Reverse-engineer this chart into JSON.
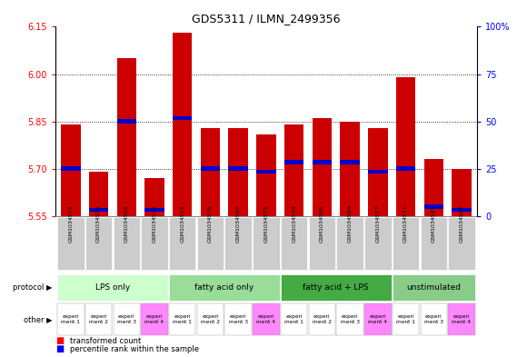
{
  "title": "GDS5311 / ILMN_2499356",
  "samples": [
    "GSM1034573",
    "GSM1034579",
    "GSM1034583",
    "GSM1034576",
    "GSM1034572",
    "GSM1034578",
    "GSM1034582",
    "GSM1034575",
    "GSM1034574",
    "GSM1034580",
    "GSM1034584",
    "GSM1034577",
    "GSM1034571",
    "GSM1034581",
    "GSM1034585"
  ],
  "red_values": [
    5.84,
    5.69,
    6.05,
    5.67,
    6.13,
    5.83,
    5.83,
    5.81,
    5.84,
    5.86,
    5.85,
    5.83,
    5.99,
    5.73,
    5.7
  ],
  "blue_values": [
    5.7,
    5.57,
    5.85,
    5.57,
    5.86,
    5.7,
    5.7,
    5.69,
    5.72,
    5.72,
    5.72,
    5.69,
    5.7,
    5.58,
    5.57
  ],
  "ylim_left": [
    5.55,
    6.15
  ],
  "yticks_left": [
    5.55,
    5.7,
    5.85,
    6.0,
    6.15
  ],
  "yticks_right": [
    0,
    25,
    50,
    75,
    100
  ],
  "bar_color": "#cc0000",
  "blue_color": "#0000cc",
  "bg_color": "#ffffff",
  "protocol_groups": [
    {
      "label": "LPS only",
      "start": 0,
      "end": 4,
      "color": "#ccffcc"
    },
    {
      "label": "fatty acid only",
      "start": 4,
      "end": 8,
      "color": "#99dd99"
    },
    {
      "label": "fatty acid + LPS",
      "start": 8,
      "end": 12,
      "color": "#44aa44"
    },
    {
      "label": "unstimulated",
      "start": 12,
      "end": 15,
      "color": "#88cc88"
    }
  ],
  "other_labels": [
    "experi\nment 1",
    "experi\nment 2",
    "experi\nment 3",
    "experi\nment 4",
    "experi\nment 1",
    "experi\nment 2",
    "experi\nment 3",
    "experi\nment 4",
    "experi\nment 1",
    "experi\nment 2",
    "experi\nment 3",
    "experi\nment 4",
    "experi\nment 1",
    "experi\nment 3",
    "experi\nment 4"
  ],
  "other_colors": [
    "#ffffff",
    "#ffffff",
    "#ffffff",
    "#ff88ff",
    "#ffffff",
    "#ffffff",
    "#ffffff",
    "#ff88ff",
    "#ffffff",
    "#ffffff",
    "#ffffff",
    "#ff88ff",
    "#ffffff",
    "#ffffff",
    "#ff88ff"
  ],
  "bar_width": 0.7,
  "sample_box_color": "#cccccc"
}
